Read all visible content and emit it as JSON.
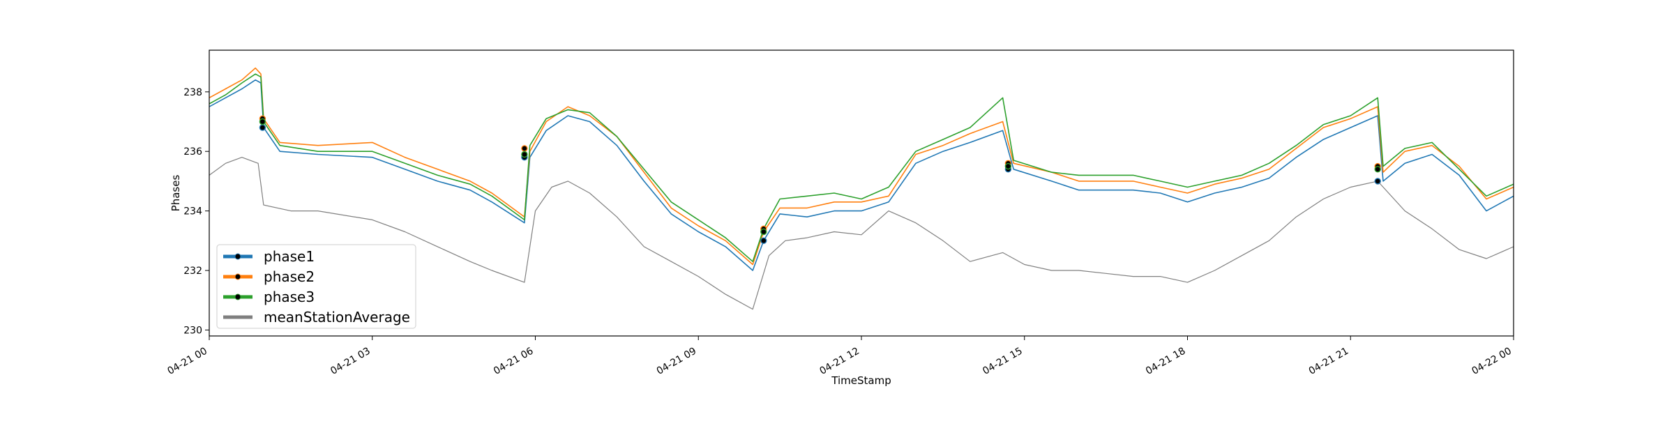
{
  "chart_data": {
    "type": "line",
    "xlabel": "TimeStamp",
    "ylabel": "Phases",
    "x_range_hours": [
      0,
      24
    ],
    "ylim": [
      229.8,
      239.4
    ],
    "grid": false,
    "legend_position": "lower-left",
    "x_tick_labels": [
      "04-21 00",
      "04-21 03",
      "04-21 06",
      "04-21 09",
      "04-21 12",
      "04-21 15",
      "04-21 18",
      "04-21 21",
      "04-22 00"
    ],
    "x_tick_hours": [
      0,
      3,
      6,
      9,
      12,
      15,
      18,
      21,
      24
    ],
    "y_ticks": [
      230,
      232,
      234,
      236,
      238
    ],
    "series": [
      {
        "name": "phase1",
        "color": "#1f77b4",
        "x_hours": [
          0,
          0.3,
          0.6,
          0.85,
          0.95,
          1.0,
          1.3,
          2.0,
          3.0,
          3.6,
          4.2,
          4.8,
          5.2,
          5.8,
          5.9,
          6.2,
          6.6,
          7.0,
          7.5,
          8.0,
          8.5,
          9.0,
          9.5,
          10.0,
          10.2,
          10.5,
          11.0,
          11.5,
          12.0,
          12.5,
          13.0,
          13.5,
          14.0,
          14.6,
          14.8,
          15.5,
          16.0,
          17.0,
          17.5,
          18.0,
          18.5,
          19.0,
          19.5,
          20.0,
          20.5,
          21.0,
          21.5,
          21.6,
          22.0,
          22.5,
          23.0,
          23.5,
          24.0
        ],
        "values": [
          237.5,
          237.8,
          238.1,
          238.4,
          238.3,
          236.8,
          236.0,
          235.9,
          235.8,
          235.4,
          235.0,
          234.7,
          234.3,
          233.6,
          235.8,
          236.7,
          237.2,
          237.0,
          236.2,
          235.0,
          233.9,
          233.3,
          232.8,
          232.0,
          233.0,
          233.9,
          233.8,
          234.0,
          234.0,
          234.3,
          235.6,
          236.0,
          236.3,
          236.7,
          235.4,
          235.0,
          234.7,
          234.7,
          234.6,
          234.3,
          234.6,
          234.8,
          235.1,
          235.8,
          236.4,
          236.8,
          237.2,
          235.0,
          235.6,
          235.9,
          235.2,
          234.0,
          234.5
        ]
      },
      {
        "name": "phase2",
        "color": "#ff7f0e",
        "x_hours": [
          0,
          0.3,
          0.6,
          0.85,
          0.95,
          1.0,
          1.3,
          2.0,
          3.0,
          3.6,
          4.2,
          4.8,
          5.2,
          5.8,
          5.9,
          6.2,
          6.6,
          7.0,
          7.5,
          8.0,
          8.5,
          9.0,
          9.5,
          10.0,
          10.2,
          10.5,
          11.0,
          11.5,
          12.0,
          12.5,
          13.0,
          13.5,
          14.0,
          14.6,
          14.8,
          15.5,
          16.0,
          17.0,
          17.5,
          18.0,
          18.5,
          19.0,
          19.5,
          20.0,
          20.5,
          21.0,
          21.5,
          21.6,
          22.0,
          22.5,
          23.0,
          23.5,
          24.0
        ],
        "values": [
          237.8,
          238.1,
          238.4,
          238.8,
          238.6,
          237.1,
          236.3,
          236.2,
          236.3,
          235.8,
          235.4,
          235.0,
          234.6,
          233.8,
          236.0,
          237.0,
          237.5,
          237.2,
          236.5,
          235.3,
          234.1,
          233.5,
          233.0,
          232.2,
          233.3,
          234.1,
          234.1,
          234.3,
          234.3,
          234.5,
          235.9,
          236.2,
          236.6,
          237.0,
          235.6,
          235.3,
          235.0,
          235.0,
          234.8,
          234.6,
          234.9,
          235.1,
          235.4,
          236.1,
          236.8,
          237.1,
          237.5,
          235.3,
          236.0,
          236.2,
          235.5,
          234.4,
          234.8
        ]
      },
      {
        "name": "phase3",
        "color": "#2ca02c",
        "x_hours": [
          0,
          0.3,
          0.6,
          0.85,
          0.95,
          1.0,
          1.3,
          2.0,
          3.0,
          3.6,
          4.2,
          4.8,
          5.2,
          5.8,
          5.9,
          6.2,
          6.6,
          7.0,
          7.5,
          8.0,
          8.5,
          9.0,
          9.5,
          10.0,
          10.2,
          10.5,
          11.0,
          11.5,
          12.0,
          12.5,
          13.0,
          13.5,
          14.0,
          14.6,
          14.8,
          15.5,
          16.0,
          17.0,
          17.5,
          18.0,
          18.5,
          19.0,
          19.5,
          20.0,
          20.5,
          21.0,
          21.5,
          21.6,
          22.0,
          22.5,
          23.0,
          23.5,
          24.0
        ],
        "values": [
          237.6,
          237.9,
          238.3,
          238.6,
          238.5,
          237.0,
          236.2,
          236.0,
          236.0,
          235.6,
          235.2,
          234.9,
          234.5,
          233.7,
          236.2,
          237.1,
          237.4,
          237.3,
          236.5,
          235.4,
          234.3,
          233.7,
          233.1,
          232.3,
          233.4,
          234.4,
          234.5,
          234.6,
          234.4,
          234.8,
          236.0,
          236.4,
          236.8,
          237.8,
          235.7,
          235.3,
          235.2,
          235.2,
          235.0,
          234.8,
          235.0,
          235.2,
          235.6,
          236.2,
          236.9,
          237.2,
          237.8,
          235.5,
          236.1,
          236.3,
          235.4,
          234.5,
          234.9
        ]
      },
      {
        "name": "meanStationAverage",
        "color": "#7f7f7f",
        "x_hours": [
          0,
          0.3,
          0.6,
          0.9,
          1.0,
          1.5,
          2.0,
          3.0,
          3.6,
          4.2,
          4.8,
          5.2,
          5.8,
          6.0,
          6.3,
          6.6,
          7.0,
          7.5,
          8.0,
          8.5,
          9.0,
          9.5,
          10.0,
          10.3,
          10.6,
          11.0,
          11.5,
          12.0,
          12.5,
          13.0,
          13.5,
          14.0,
          14.6,
          15.0,
          15.5,
          16.0,
          16.5,
          17.0,
          17.5,
          18.0,
          18.5,
          19.0,
          19.5,
          20.0,
          20.5,
          21.0,
          21.5,
          22.0,
          22.5,
          23.0,
          23.5,
          24.0
        ],
        "values": [
          235.2,
          235.6,
          235.8,
          235.6,
          234.2,
          234.0,
          234.0,
          233.7,
          233.3,
          232.8,
          232.3,
          232.0,
          231.6,
          234.0,
          234.8,
          235.0,
          234.6,
          233.8,
          232.8,
          232.3,
          231.8,
          231.2,
          230.7,
          232.5,
          233.0,
          233.1,
          233.3,
          233.2,
          234.0,
          233.6,
          233.0,
          232.3,
          232.6,
          232.2,
          232.0,
          232.0,
          231.9,
          231.8,
          231.8,
          231.6,
          232.0,
          232.5,
          233.0,
          233.8,
          234.4,
          234.8,
          235.0,
          234.0,
          233.4,
          232.7,
          232.4,
          232.8
        ]
      }
    ],
    "markers": [
      {
        "series": "phase1",
        "points": [
          [
            0.98,
            236.8
          ],
          [
            5.8,
            235.8
          ],
          [
            10.2,
            233.0
          ],
          [
            14.7,
            235.4
          ],
          [
            21.5,
            235.0
          ]
        ]
      },
      {
        "series": "phase2",
        "points": [
          [
            0.98,
            237.1
          ],
          [
            5.8,
            236.1
          ],
          [
            10.2,
            233.4
          ],
          [
            14.7,
            235.6
          ],
          [
            21.5,
            235.5
          ]
        ]
      },
      {
        "series": "phase3",
        "points": [
          [
            0.98,
            237.0
          ],
          [
            5.8,
            235.9
          ],
          [
            10.2,
            233.3
          ],
          [
            14.7,
            235.5
          ],
          [
            21.5,
            235.4
          ]
        ]
      }
    ]
  }
}
